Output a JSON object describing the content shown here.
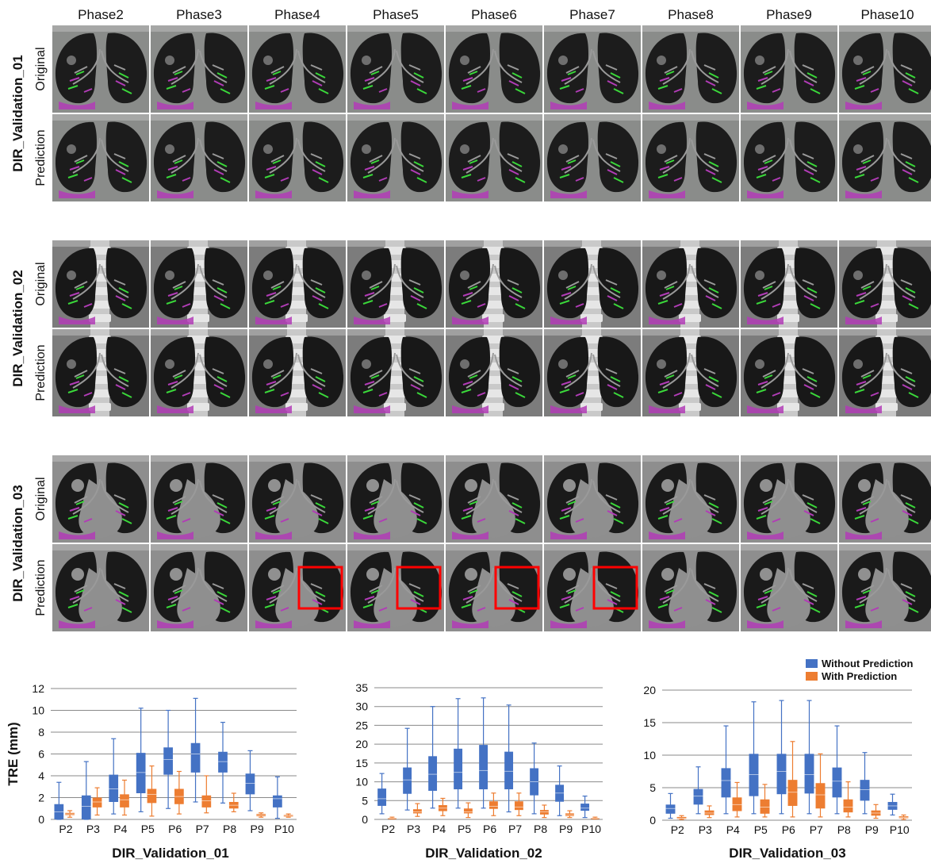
{
  "grid": {
    "phases": [
      "Phase2",
      "Phase3",
      "Phase4",
      "Phase5",
      "Phase6",
      "Phase7",
      "Phase8",
      "Phase9",
      "Phase10"
    ],
    "groups": [
      {
        "label": "DIR_Validation_01",
        "rows": [
          "Original",
          "Prediction"
        ],
        "style": "dark"
      },
      {
        "label": "DIR_Validation_02",
        "rows": [
          "Original",
          "Prediction"
        ],
        "style": "spine"
      },
      {
        "label": "DIR_Validation_03",
        "rows": [
          "Original",
          "Prediction"
        ],
        "style": "light"
      }
    ],
    "highlight_boxes": {
      "group": 2,
      "row": 1,
      "phase_indices": [
        2,
        3,
        4,
        5
      ],
      "color": "#ff0000"
    },
    "colors": {
      "overlay_magenta": "#b13cb6",
      "overlay_green": "#3ad83a",
      "background": "#7e7e7e"
    }
  },
  "legend": {
    "items": [
      {
        "label": "Without Prediction",
        "color": "#4472c4"
      },
      {
        "label": "With Prediction",
        "color": "#ed7d31"
      }
    ]
  },
  "chart_data": [
    {
      "type": "box",
      "title": "DIR_Validation_01",
      "ylabel": "TRE (mm)",
      "ylim": [
        0,
        12
      ],
      "yticks": [
        0,
        2,
        4,
        6,
        8,
        10,
        12
      ],
      "grid": true,
      "categories": [
        "P2",
        "P3",
        "P4",
        "P5",
        "P6",
        "P7",
        "P8",
        "P9",
        "P10"
      ],
      "series": [
        {
          "name": "Without Prediction",
          "color": "#4472c4",
          "boxes": [
            {
              "min": 0,
              "q1": 0,
              "median": 0.7,
              "q3": 1.4,
              "max": 3.4
            },
            {
              "min": 0,
              "q1": 0,
              "median": 1.2,
              "q3": 2.2,
              "max": 5.3
            },
            {
              "min": 0.5,
              "q1": 1.6,
              "median": 2.8,
              "q3": 4.1,
              "max": 7.4
            },
            {
              "min": 0.7,
              "q1": 2.4,
              "median": 4.3,
              "q3": 6.1,
              "max": 10.2
            },
            {
              "min": 1.0,
              "q1": 4.1,
              "median": 5.5,
              "q3": 6.6,
              "max": 10.0
            },
            {
              "min": 1.6,
              "q1": 4.3,
              "median": 6.0,
              "q3": 7.0,
              "max": 11.1
            },
            {
              "min": 1.5,
              "q1": 4.3,
              "median": 5.3,
              "q3": 6.2,
              "max": 8.9
            },
            {
              "min": 0.8,
              "q1": 2.3,
              "median": 3.3,
              "q3": 4.2,
              "max": 6.3
            },
            {
              "min": 0.1,
              "q1": 1.1,
              "median": 1.9,
              "q3": 2.2,
              "max": 3.9
            }
          ]
        },
        {
          "name": "With Prediction",
          "color": "#ed7d31",
          "boxes": [
            {
              "min": 0.2,
              "q1": 0.4,
              "median": 0.5,
              "q3": 0.6,
              "max": 0.8
            },
            {
              "min": 0.4,
              "q1": 1.1,
              "median": 1.6,
              "q3": 2.0,
              "max": 2.9
            },
            {
              "min": 0.4,
              "q1": 1.1,
              "median": 1.8,
              "q3": 2.3,
              "max": 3.6
            },
            {
              "min": 0.3,
              "q1": 1.5,
              "median": 2.3,
              "q3": 2.8,
              "max": 4.9
            },
            {
              "min": 0.5,
              "q1": 1.4,
              "median": 2.1,
              "q3": 2.8,
              "max": 4.4
            },
            {
              "min": 0.6,
              "q1": 1.1,
              "median": 1.7,
              "q3": 2.2,
              "max": 4.0
            },
            {
              "min": 0.7,
              "q1": 1.0,
              "median": 1.3,
              "q3": 1.6,
              "max": 2.4
            },
            {
              "min": 0.2,
              "q1": 0.3,
              "median": 0.4,
              "q3": 0.5,
              "max": 0.6
            },
            {
              "min": 0.2,
              "q1": 0.25,
              "median": 0.3,
              "q3": 0.4,
              "max": 0.5
            }
          ]
        }
      ]
    },
    {
      "type": "box",
      "title": "DIR_Validation_02",
      "ylim": [
        0,
        35
      ],
      "yticks": [
        0,
        5,
        10,
        15,
        20,
        25,
        30,
        35
      ],
      "grid": true,
      "categories": [
        "P2",
        "P3",
        "P4",
        "P5",
        "P6",
        "P7",
        "P8",
        "P9",
        "P10"
      ],
      "series": [
        {
          "name": "Without Prediction",
          "color": "#4472c4",
          "boxes": [
            {
              "min": 1.5,
              "q1": 3.6,
              "median": 5.5,
              "q3": 8.2,
              "max": 12.2
            },
            {
              "min": 2.5,
              "q1": 6.8,
              "median": 10.5,
              "q3": 13.8,
              "max": 24.2
            },
            {
              "min": 3.0,
              "q1": 7.6,
              "median": 12.0,
              "q3": 16.8,
              "max": 30.0
            },
            {
              "min": 3.0,
              "q1": 8.0,
              "median": 12.5,
              "q3": 18.8,
              "max": 32.1
            },
            {
              "min": 3.0,
              "q1": 8.0,
              "median": 13.0,
              "q3": 19.8,
              "max": 32.3
            },
            {
              "min": 2.0,
              "q1": 8.0,
              "median": 12.8,
              "q3": 18.0,
              "max": 30.4
            },
            {
              "min": 1.5,
              "q1": 6.4,
              "median": 10.0,
              "q3": 13.6,
              "max": 20.3
            },
            {
              "min": 1.0,
              "q1": 4.7,
              "median": 7.0,
              "q3": 9.2,
              "max": 14.2
            },
            {
              "min": 0.5,
              "q1": 2.3,
              "median": 3.0,
              "q3": 4.2,
              "max": 6.2
            }
          ]
        },
        {
          "name": "With Prediction",
          "color": "#ed7d31",
          "boxes": [
            {
              "min": 0.1,
              "q1": 0.2,
              "median": 0.3,
              "q3": 0.4,
              "max": 0.6
            },
            {
              "min": 0.8,
              "q1": 1.6,
              "median": 2.0,
              "q3": 2.7,
              "max": 4.2
            },
            {
              "min": 1.0,
              "q1": 2.2,
              "median": 3.0,
              "q3": 3.8,
              "max": 5.6
            },
            {
              "min": 0.5,
              "q1": 1.6,
              "median": 2.0,
              "q3": 2.9,
              "max": 4.4
            },
            {
              "min": 1.0,
              "q1": 2.8,
              "median": 3.5,
              "q3": 4.8,
              "max": 7.0
            },
            {
              "min": 1.0,
              "q1": 2.5,
              "median": 3.3,
              "q3": 4.8,
              "max": 7.0
            },
            {
              "min": 0.5,
              "q1": 1.3,
              "median": 2.0,
              "q3": 2.5,
              "max": 3.8
            },
            {
              "min": 0.5,
              "q1": 0.9,
              "median": 1.2,
              "q3": 1.6,
              "max": 2.3
            },
            {
              "min": 0.1,
              "q1": 0.2,
              "median": 0.3,
              "q3": 0.4,
              "max": 0.6
            }
          ]
        }
      ]
    },
    {
      "type": "box",
      "title": "DIR_Validation_03",
      "ylim": [
        0,
        20
      ],
      "yticks": [
        0,
        5,
        10,
        15,
        20
      ],
      "grid": true,
      "categories": [
        "P2",
        "P3",
        "P4",
        "P5",
        "P6",
        "P7",
        "P8",
        "P9",
        "P10"
      ],
      "series": [
        {
          "name": "Without Prediction",
          "color": "#4472c4",
          "boxes": [
            {
              "min": 0.3,
              "q1": 1.0,
              "median": 1.8,
              "q3": 2.4,
              "max": 4.1
            },
            {
              "min": 1.0,
              "q1": 2.4,
              "median": 3.7,
              "q3": 4.8,
              "max": 8.2
            },
            {
              "min": 1.0,
              "q1": 3.5,
              "median": 6.1,
              "q3": 8.0,
              "max": 14.5
            },
            {
              "min": 1.0,
              "q1": 3.7,
              "median": 7.0,
              "q3": 10.2,
              "max": 18.2
            },
            {
              "min": 1.0,
              "q1": 4.0,
              "median": 7.5,
              "q3": 10.2,
              "max": 18.4
            },
            {
              "min": 1.0,
              "q1": 4.1,
              "median": 7.0,
              "q3": 10.2,
              "max": 18.4
            },
            {
              "min": 1.0,
              "q1": 3.5,
              "median": 6.0,
              "q3": 8.1,
              "max": 14.5
            },
            {
              "min": 1.0,
              "q1": 3.0,
              "median": 4.7,
              "q3": 6.2,
              "max": 10.4
            },
            {
              "min": 0.8,
              "q1": 1.6,
              "median": 2.2,
              "q3": 2.8,
              "max": 4.0
            }
          ]
        },
        {
          "name": "With Prediction",
          "color": "#ed7d31",
          "boxes": [
            {
              "min": 0.1,
              "q1": 0.2,
              "median": 0.3,
              "q3": 0.5,
              "max": 0.7
            },
            {
              "min": 0.4,
              "q1": 0.8,
              "median": 1.1,
              "q3": 1.5,
              "max": 2.2
            },
            {
              "min": 0.5,
              "q1": 1.4,
              "median": 2.4,
              "q3": 3.5,
              "max": 5.8
            },
            {
              "min": 0.5,
              "q1": 1.0,
              "median": 2.0,
              "q3": 3.2,
              "max": 5.5
            },
            {
              "min": 0.5,
              "q1": 2.2,
              "median": 4.3,
              "q3": 6.2,
              "max": 12.1
            },
            {
              "min": 0.5,
              "q1": 1.8,
              "median": 3.9,
              "q3": 5.7,
              "max": 10.2
            },
            {
              "min": 0.5,
              "q1": 1.2,
              "median": 2.0,
              "q3": 3.2,
              "max": 5.9
            },
            {
              "min": 0.3,
              "q1": 0.7,
              "median": 1.1,
              "q3": 1.5,
              "max": 2.4
            },
            {
              "min": 0.1,
              "q1": 0.3,
              "median": 0.4,
              "q3": 0.6,
              "max": 0.8
            }
          ]
        }
      ]
    }
  ]
}
